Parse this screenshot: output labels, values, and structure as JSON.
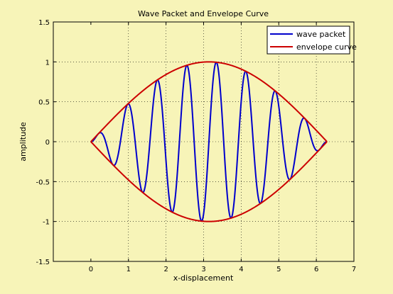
{
  "chart_data": {
    "type": "line",
    "title": "Wave Packet and Envelope Curve",
    "xlabel": "x-displacement",
    "ylabel": "amplitude",
    "xlim": [
      -1,
      7
    ],
    "ylim": [
      -1.5,
      1.5
    ],
    "xticks": [
      0,
      1,
      2,
      3,
      4,
      5,
      6,
      7
    ],
    "yticks": [
      -1.5,
      -1,
      -0.5,
      0,
      0.5,
      1,
      1.5
    ],
    "xtick_labels": [
      "0",
      "1",
      "2",
      "3",
      "4",
      "5",
      "6",
      "7"
    ],
    "ytick_labels": [
      "-1.5",
      "-1",
      "-0.5",
      "0",
      "0.5",
      "1",
      "1.5"
    ],
    "grid": true,
    "legend_position": "top-right",
    "series": [
      {
        "name": "wave packet",
        "color": "#0000cc",
        "formula": "sin(x/2) * sin(8x)",
        "x_range": [
          0,
          6.2832
        ]
      },
      {
        "name": "envelope curve",
        "color": "#cc0000",
        "formula": "±sin(x/2)",
        "x_range": [
          0,
          6.2832
        ]
      }
    ]
  }
}
